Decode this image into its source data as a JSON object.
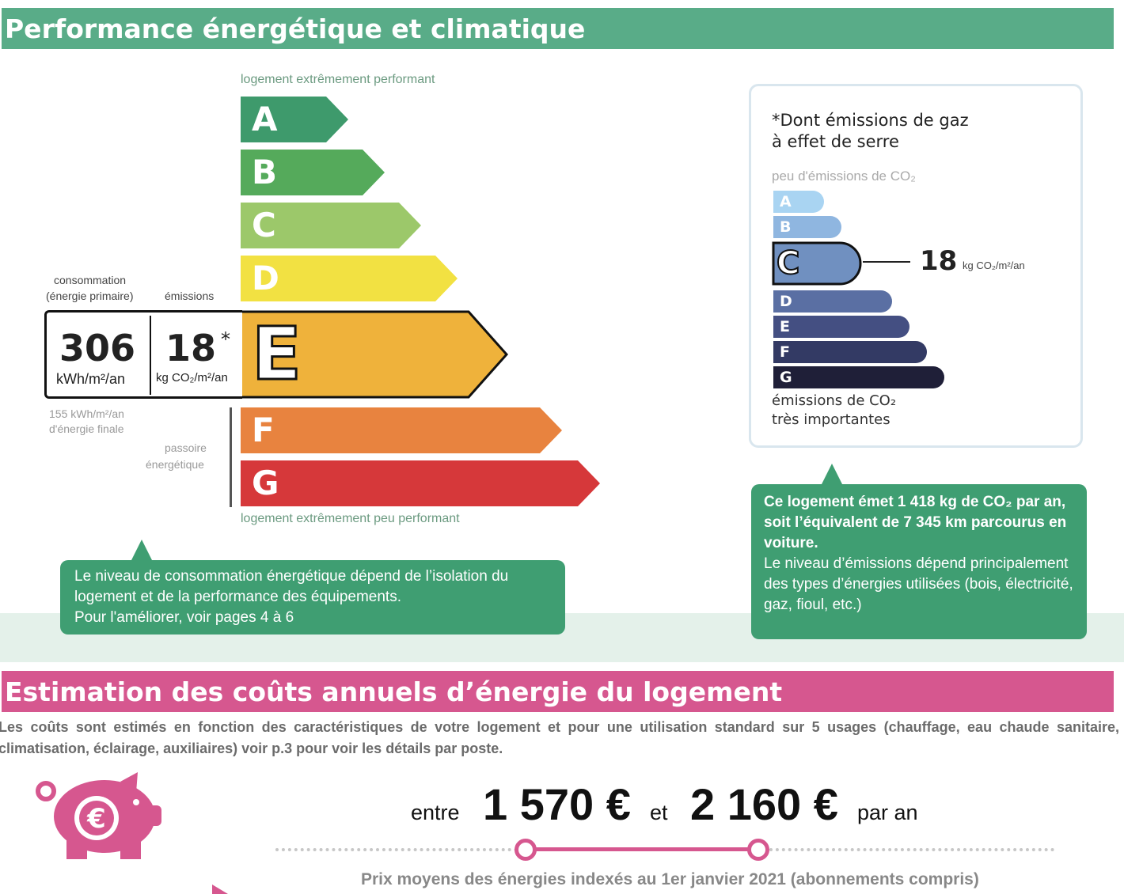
{
  "sections": {
    "performance_title": "Performance énergétique et climatique",
    "costs_title": "Estimation des coûts annuels d’énergie du logement"
  },
  "dpe": {
    "top_caption": "logement extrêmement performant",
    "bottom_caption": "logement extrêmement peu performant",
    "classes": [
      "A",
      "B",
      "C",
      "D",
      "E",
      "F",
      "G"
    ],
    "class_colors": [
      "#3e9a6c",
      "#55aa5b",
      "#9cc86a",
      "#f2e142",
      "#efb23b",
      "#e8833f",
      "#d6383a"
    ],
    "current_class": "E",
    "consumption_label_line1": "consommation",
    "consumption_label_line2": "(énergie primaire)",
    "emissions_label": "émissions",
    "consumption_value": "306",
    "consumption_unit": "kWh/m²/an",
    "emissions_value": "18",
    "emissions_star": "*",
    "emissions_unit": "kg CO₂/m²/an",
    "final_energy_line1": "155 kWh/m²/an",
    "final_energy_line2": "d'énergie finale",
    "passoire_line1": "passoire",
    "passoire_line2": "énergétique"
  },
  "ges": {
    "title_line1": "*Dont émissions de gaz",
    "title_line2": "à effet de serre",
    "top_caption": "peu d'émissions de CO₂",
    "classes": [
      "A",
      "B",
      "C",
      "D",
      "E",
      "F",
      "G"
    ],
    "class_colors": [
      "#a9d4f2",
      "#8fb6e0",
      "#7090c0",
      "#5a6fa3",
      "#444f82",
      "#333a64",
      "#1f1f38"
    ],
    "current_class": "C",
    "value": "18",
    "unit": "kg CO₂/m²/an",
    "bottom_caption_line1": "émissions de CO₂",
    "bottom_caption_line2": "très importantes"
  },
  "tooltips": {
    "consumption_line1": "Le niveau de consommation énergétique dépend de l’isolation du",
    "consumption_line2": "logement et de la performance des équipements.",
    "consumption_line3": "Pour l'améliorer, voir pages 4 à 6",
    "emissions_bold": "Ce logement émet 1 418 kg de CO₂ par an, soit l’équivalent de 7 345 km parcourus en voiture.",
    "emissions_normal": "Le niveau d’émissions dépend principalement des types d’énergies utilisées (bois, électricité, gaz, fioul, etc.)"
  },
  "costs": {
    "description": "Les coûts sont estimés en fonction des caractéristiques de votre logement et pour une utilisation standard sur 5 usages (chauffage, eau chaude sanitaire, climatisation, éclairage, auxiliaires) voir p.3 pour voir les détails par poste.",
    "word_between": "entre",
    "min": "1 570 €",
    "word_and": "et",
    "max": "2 160 €",
    "word_per_year": "par an",
    "prices_note": "Prix moyens des énergies indexés au  1er janvier 2021 (abonnements compris)",
    "icon": "piggy-bank-euro-icon",
    "accent_color": "#d6578f"
  }
}
